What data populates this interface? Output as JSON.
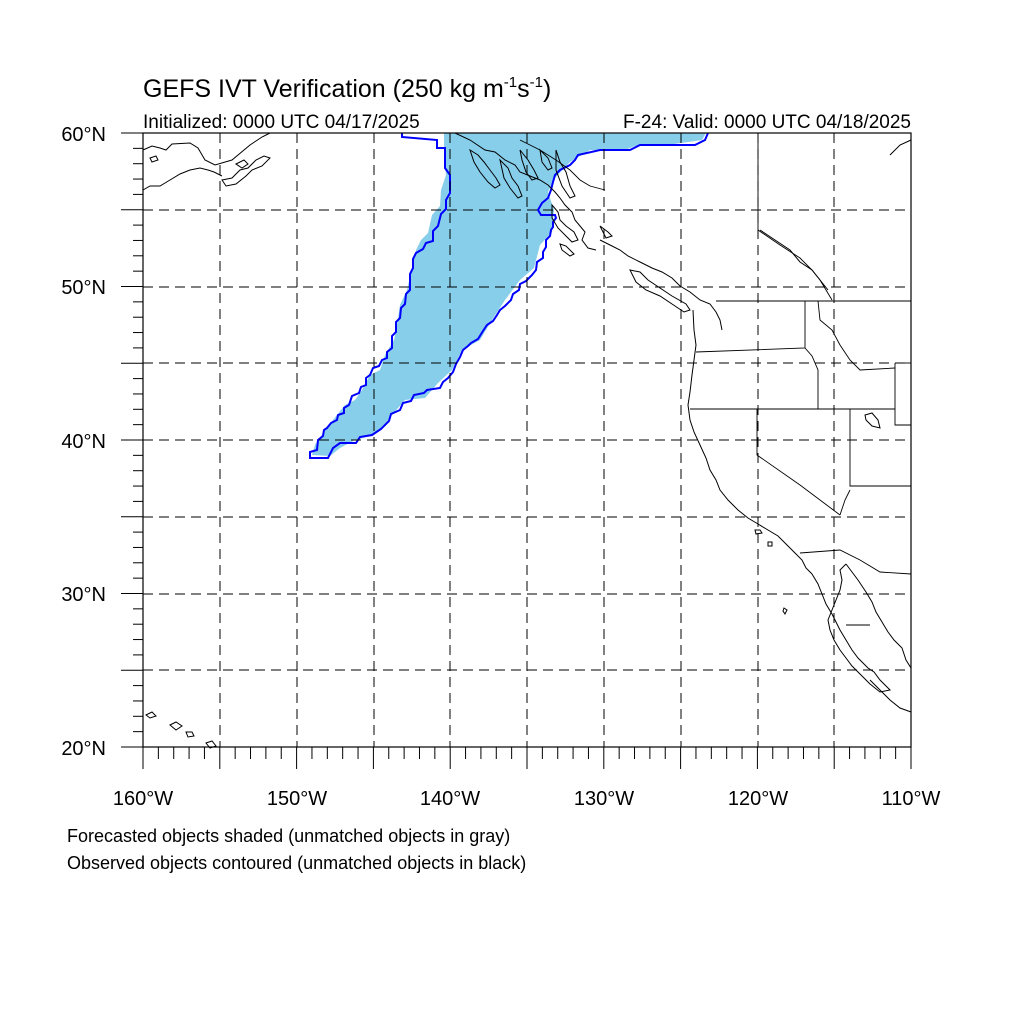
{
  "title": {
    "main": "GEFS IVT Verification (250 kg m",
    "sup1": "-1",
    "mid": "s",
    "sup2": "-1",
    "end": ")"
  },
  "subtitle_left": "Initialized: 0000 UTC 04/17/2025",
  "subtitle_right": "F-24: Valid: 0000 UTC 04/18/2025",
  "lat_labels": [
    "60°N",
    "50°N",
    "40°N",
    "30°N",
    "20°N"
  ],
  "lon_labels": [
    "160°W",
    "150°W",
    "140°W",
    "130°W",
    "120°W",
    "110°W"
  ],
  "footnote_1": "Forecasted objects shaded (unmatched objects in gray)",
  "footnote_2": "Observed objects contoured (unmatched objects in black)",
  "colors": {
    "forecast_fill": "#87ceeb",
    "observed_contour": "#0000ff"
  },
  "map": {
    "extent_lon": [
      -160,
      -110
    ],
    "extent_lat": [
      20,
      60
    ],
    "gridlines_every_deg": 5
  }
}
